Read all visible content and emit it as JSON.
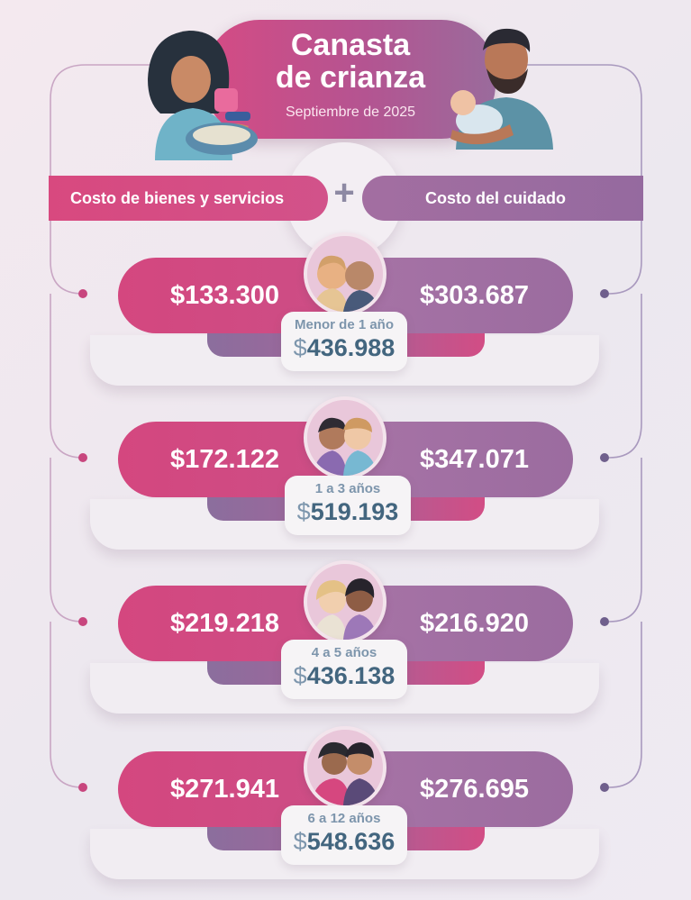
{
  "header": {
    "title_line1": "Canasta",
    "title_line2": "de crianza",
    "subtitle": "Septiembre de 2025"
  },
  "banners": {
    "left": "Costo de bienes y servicios",
    "right": "Costo del cuidado",
    "plus": "+"
  },
  "rows": [
    {
      "age": "Menor de 1 año",
      "bienes": "$133.300",
      "cuidado": "$303.687",
      "currency": "$",
      "total": "436.988"
    },
    {
      "age": "1 a 3 años",
      "bienes": "$172.122",
      "cuidado": "$347.071",
      "currency": "$",
      "total": "519.193"
    },
    {
      "age": "4 a 5 años",
      "bienes": "$219.218",
      "cuidado": "$216.920",
      "currency": "$",
      "total": "436.138"
    },
    {
      "age": "6 a 12 años",
      "bienes": "$271.941",
      "cuidado": "$276.695",
      "currency": "$",
      "total": "548.636"
    }
  ],
  "colors": {
    "pink": "#d4477f",
    "purple": "#9b6c9f",
    "total_text": "#43667f",
    "age_text": "#7d95ac"
  },
  "icons": [
    "mother-feeding-illustration",
    "father-holding-baby-illustration",
    "plus-icon",
    "infants-avatar",
    "toddlers-avatar",
    "preschoolers-avatar",
    "school-kids-avatar"
  ]
}
